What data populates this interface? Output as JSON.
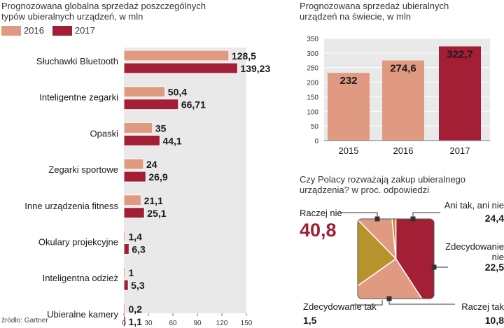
{
  "left_chart": {
    "title_line1": "Prognozowana globalna sprzedaż poszczególnych",
    "title_line2": "typów ubieralnych urządzeń, w mln",
    "legend": [
      {
        "label": "2016",
        "color": "#e09a82"
      },
      {
        "label": "2017",
        "color": "#a31f36"
      }
    ]
  },
  "right_chart": {
    "title_line1": "Prognozowana sprzedaż ubieralnych",
    "title_line2": "urządzeń na świecie, w mln"
  },
  "pie_chart": {
    "title_line1": "Czy Polacy rozważają zakup ubieralnego",
    "title_line2": "urządzenia? w proc. odpowiedzi"
  },
  "source": "źródło: Gartner",
  "chart_data": [
    {
      "type": "bar",
      "orientation": "horizontal",
      "title": "Prognozowana globalna sprzedaż poszczególnych typów ubieralnych urządzeń, w mln",
      "categories": [
        "Słuchawki Bluetooth",
        "Inteligentne zegarki",
        "Opaski",
        "Zegarki sportowe",
        "Inne urządzenia fitness",
        "Okulary projekcyjne",
        "Inteligentna odzież",
        "Ubieralne kamery"
      ],
      "series": [
        {
          "name": "2016",
          "values": [
            128.5,
            50.4,
            35,
            24,
            21.1,
            1.4,
            1,
            0.2
          ],
          "labels": [
            "128,5",
            "50,4",
            "35",
            "24",
            "21,1",
            "1,4",
            "1",
            "0,2"
          ],
          "color": "#e09a82"
        },
        {
          "name": "2017",
          "values": [
            139.23,
            66.71,
            44.1,
            26.9,
            25.1,
            6.3,
            5.3,
            1.1
          ],
          "labels": [
            "139,23",
            "66,71",
            "44,1",
            "26,9",
            "25,1",
            "6,3",
            "5,3",
            "1,1"
          ],
          "color": "#a31f36"
        }
      ],
      "xlim": [
        0,
        150
      ],
      "xticks": [
        0,
        30,
        60,
        90,
        120,
        150
      ],
      "grid": false
    },
    {
      "type": "bar",
      "title": "Prognozowana sprzedaż ubieralnych urządzeń na świecie, w mln",
      "categories": [
        "2015",
        "2016",
        "2017"
      ],
      "values": [
        232,
        274.6,
        322.7
      ],
      "labels": [
        "232",
        "274,6",
        "322,7"
      ],
      "colors": [
        "#e09a82",
        "#e09a82",
        "#a31f36"
      ],
      "ylim": [
        0,
        350
      ],
      "yticks": [
        0,
        50,
        100,
        150,
        200,
        250,
        300,
        350
      ],
      "grid": true
    },
    {
      "type": "pie",
      "title": "Czy Polacy rozważają zakup ubieralnego urządzenia? w proc. odpowiedzi",
      "slices": [
        {
          "label": "Raczej nie",
          "value": 40.8,
          "text": "40,8",
          "color": "#a31f36"
        },
        {
          "label": "Ani tak, ani nie",
          "value": 24.4,
          "text": "24,4",
          "color": "#e09a82"
        },
        {
          "label": "Zdecydowanie nie",
          "value": 22.5,
          "text": "22,5",
          "color": "#b8922a"
        },
        {
          "label": "Raczej tak",
          "value": 10.8,
          "text": "10,8",
          "color": "#e09a82"
        },
        {
          "label": "Zdecydowanie tak",
          "value": 1.5,
          "text": "1,5",
          "color": "#b8922a"
        }
      ]
    }
  ]
}
